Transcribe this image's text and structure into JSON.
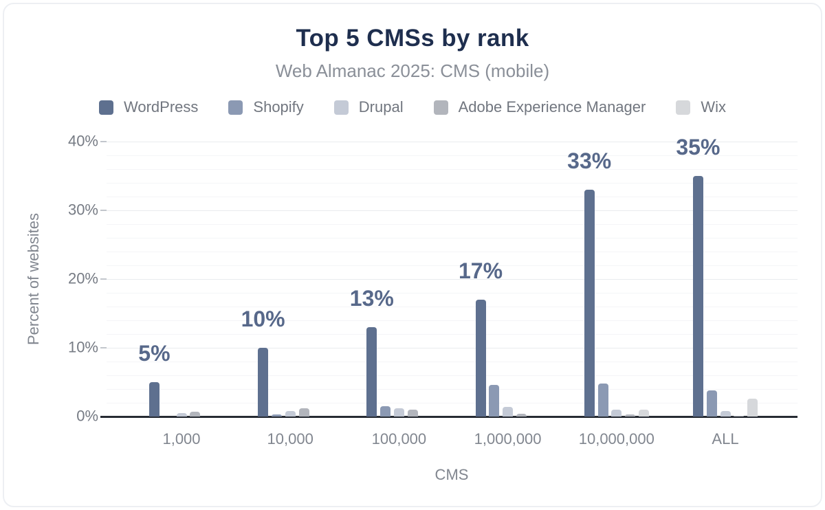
{
  "chart_data": {
    "type": "bar",
    "title": "Top 5 CMSs by rank",
    "subtitle": "Web Almanac 2025: CMS (mobile)",
    "xlabel": "CMS",
    "ylabel": "Percent of websites",
    "categories": [
      "1,000",
      "10,000",
      "100,000",
      "1,000,000",
      "10,000,000",
      "ALL"
    ],
    "series": [
      {
        "name": "WordPress",
        "color": "#5e708f",
        "values": [
          5,
          10,
          13,
          17,
          33,
          35
        ],
        "data_labels": [
          "5%",
          "10%",
          "13%",
          "17%",
          "33%",
          "35%"
        ]
      },
      {
        "name": "Shopify",
        "color": "#8b99b3",
        "values": [
          0,
          0.3,
          1.5,
          4.6,
          4.8,
          3.8
        ]
      },
      {
        "name": "Drupal",
        "color": "#c4cad6",
        "values": [
          0.5,
          0.8,
          1.2,
          1.4,
          1.0,
          0.8
        ]
      },
      {
        "name": "Adobe Experience Manager",
        "color": "#b2b5bc",
        "values": [
          0.7,
          1.2,
          1.0,
          0.4,
          0.3,
          0.1
        ]
      },
      {
        "name": "Wix",
        "color": "#d6d8db",
        "values": [
          0,
          0,
          0,
          0,
          1.0,
          2.6
        ]
      }
    ],
    "ylim": [
      0,
      40
    ],
    "yticks": [
      {
        "value": 0,
        "label": "0%"
      },
      {
        "value": 10,
        "label": "10%"
      },
      {
        "value": 20,
        "label": "20%"
      },
      {
        "value": 30,
        "label": "30%"
      },
      {
        "value": 40,
        "label": "40%"
      }
    ],
    "grid": {
      "minor_step": 2,
      "major_step": 10
    },
    "legend_position": "top"
  }
}
